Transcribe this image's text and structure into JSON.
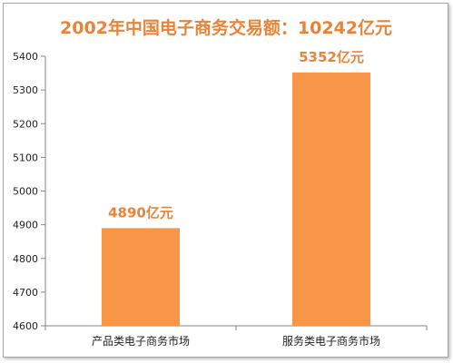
{
  "colors": {
    "accent": "#e8843a",
    "bar": "#f79646",
    "axis": "#868686",
    "grid": "#d9d9d9"
  },
  "chart_data": {
    "type": "bar",
    "title": "2002年中国电子商务交易额：10242亿元",
    "xlabel": "",
    "ylabel": "",
    "categories": [
      "产品类电子商务市场",
      "服务类电子商务市场"
    ],
    "values": [
      4890,
      5352
    ],
    "data_labels": [
      "4890亿元",
      "5352亿元"
    ],
    "ylim": [
      4600,
      5400
    ],
    "yticks": [
      4600,
      4700,
      4800,
      4900,
      5000,
      5100,
      5200,
      5300,
      5400
    ],
    "grid": false,
    "legend": "none"
  }
}
